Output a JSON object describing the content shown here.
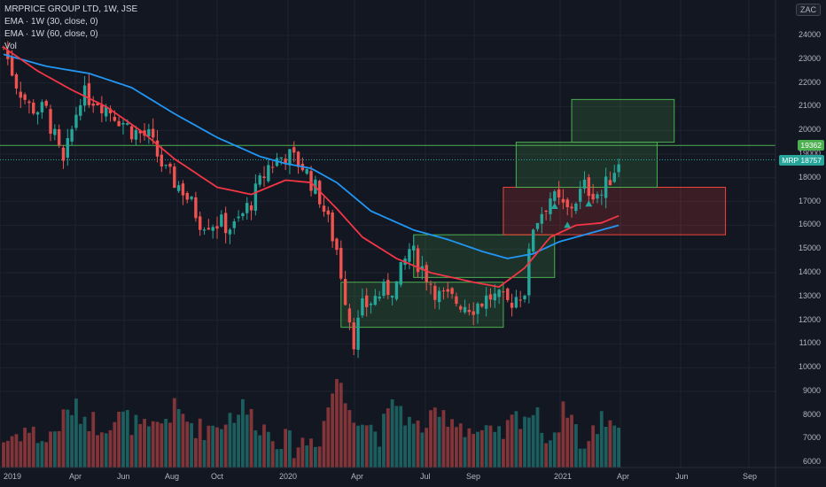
{
  "legend": {
    "line1": "MRPRICE GROUP LTD, 1W, JSE",
    "line2": "EMA · 1W (30, close, 0)",
    "line3": "EMA · 1W (60, close, 0)",
    "line4": "Vol"
  },
  "unit_label": "ZAC",
  "price_tags": {
    "upper": "19362",
    "lower_symbol": "MRP",
    "lower_value": "18757"
  },
  "colors": {
    "background": "#131722",
    "up": "#26a69a",
    "down": "#ef5350",
    "ema30": "#f23645",
    "ema60": "#2196f3",
    "zone_green": "#4caf50",
    "zone_red": "#f44336",
    "hline": "#4caf50"
  },
  "chart_data": {
    "type": "candlestick",
    "symbol": "MRPRICE GROUP LTD",
    "interval": "1W",
    "exchange": "JSE",
    "y_ticks": [
      6000,
      7000,
      8000,
      9000,
      10000,
      11000,
      12000,
      13000,
      14000,
      15000,
      16000,
      17000,
      18000,
      19000,
      20000,
      21000,
      22000,
      23000,
      24000
    ],
    "x_ticks": [
      "2019",
      "Apr",
      "Jun",
      "Aug",
      "Oct",
      "2020",
      "Apr",
      "Jul",
      "Sep",
      "2021",
      "Apr",
      "Jun",
      "Sep"
    ],
    "horizontal_line": 19362,
    "last_price": 18757,
    "control_points": [
      [
        0,
        23500
      ],
      [
        3,
        22000
      ],
      [
        6,
        21000
      ],
      [
        10,
        20800
      ],
      [
        14,
        18500
      ],
      [
        18,
        21500
      ],
      [
        22,
        21300
      ],
      [
        26,
        20700
      ],
      [
        30,
        20000
      ],
      [
        34,
        19700
      ],
      [
        38,
        18200
      ],
      [
        42,
        17500
      ],
      [
        46,
        16200
      ],
      [
        50,
        16100
      ],
      [
        54,
        15900
      ],
      [
        58,
        17000
      ],
      [
        62,
        18500
      ],
      [
        66,
        19000
      ],
      [
        70,
        18500
      ],
      [
        74,
        17200
      ],
      [
        78,
        15000
      ],
      [
        80,
        13000
      ],
      [
        82,
        11200
      ],
      [
        84,
        12500
      ],
      [
        88,
        13100
      ],
      [
        92,
        13500
      ],
      [
        95,
        15000
      ],
      [
        98,
        14200
      ],
      [
        102,
        13000
      ],
      [
        106,
        12800
      ],
      [
        110,
        12600
      ],
      [
        114,
        13000
      ],
      [
        118,
        12700
      ],
      [
        122,
        13300
      ],
      [
        124,
        16000
      ],
      [
        128,
        17200
      ],
      [
        132,
        16600
      ],
      [
        136,
        17600
      ],
      [
        140,
        17300
      ],
      [
        144,
        18757
      ]
    ],
    "ema30_points": [
      [
        0,
        23500
      ],
      [
        8,
        22500
      ],
      [
        16,
        21700
      ],
      [
        24,
        21000
      ],
      [
        32,
        20000
      ],
      [
        40,
        18800
      ],
      [
        50,
        17600
      ],
      [
        58,
        17300
      ],
      [
        66,
        17900
      ],
      [
        72,
        17800
      ],
      [
        78,
        16700
      ],
      [
        84,
        15500
      ],
      [
        92,
        14600
      ],
      [
        100,
        14000
      ],
      [
        110,
        13600
      ],
      [
        116,
        13400
      ],
      [
        122,
        14200
      ],
      [
        128,
        15500
      ],
      [
        134,
        16000
      ],
      [
        140,
        16100
      ],
      [
        144,
        16400
      ]
    ],
    "ema60_points": [
      [
        0,
        23200
      ],
      [
        10,
        22700
      ],
      [
        20,
        22400
      ],
      [
        30,
        21800
      ],
      [
        40,
        20700
      ],
      [
        50,
        19700
      ],
      [
        60,
        18900
      ],
      [
        66,
        18600
      ],
      [
        72,
        18400
      ],
      [
        78,
        17800
      ],
      [
        86,
        16600
      ],
      [
        96,
        15800
      ],
      [
        104,
        15400
      ],
      [
        112,
        14900
      ],
      [
        118,
        14600
      ],
      [
        124,
        14800
      ],
      [
        130,
        15300
      ],
      [
        136,
        15600
      ],
      [
        144,
        16000
      ]
    ],
    "volume_points": [
      [
        0,
        6900
      ],
      [
        5,
        7400
      ],
      [
        10,
        6900
      ],
      [
        16,
        8300
      ],
      [
        22,
        7600
      ],
      [
        28,
        7900
      ],
      [
        34,
        7200
      ],
      [
        40,
        8200
      ],
      [
        46,
        7400
      ],
      [
        50,
        7600
      ],
      [
        56,
        8300
      ],
      [
        62,
        7300
      ],
      [
        68,
        6700
      ],
      [
        74,
        7100
      ],
      [
        78,
        9600
      ],
      [
        80,
        8600
      ],
      [
        84,
        7800
      ],
      [
        88,
        7200
      ],
      [
        92,
        8600
      ],
      [
        96,
        7400
      ],
      [
        104,
        8000
      ],
      [
        110,
        7300
      ],
      [
        116,
        7000
      ],
      [
        120,
        7900
      ],
      [
        124,
        8100
      ],
      [
        128,
        7000
      ],
      [
        132,
        8400
      ],
      [
        136,
        6500
      ],
      [
        140,
        7900
      ],
      [
        144,
        7700
      ]
    ],
    "zones": [
      {
        "type": "green",
        "x0": 79,
        "x1": 117,
        "y0": 11700,
        "y1": 13600
      },
      {
        "type": "green",
        "x0": 96,
        "x1": 129,
        "y0": 13800,
        "y1": 15600
      },
      {
        "type": "red",
        "x0": 117,
        "x1": 169,
        "y0": 15600,
        "y1": 17600
      },
      {
        "type": "green",
        "x0": 120,
        "x1": 153,
        "y0": 17600,
        "y1": 19500
      },
      {
        "type": "green",
        "x0": 133,
        "x1": 157,
        "y0": 19500,
        "y1": 21300
      }
    ],
    "markers": [
      {
        "x": 129,
        "y": 16800
      },
      {
        "x": 132,
        "y": 16000
      },
      {
        "x": 137,
        "y": 16900
      }
    ]
  }
}
